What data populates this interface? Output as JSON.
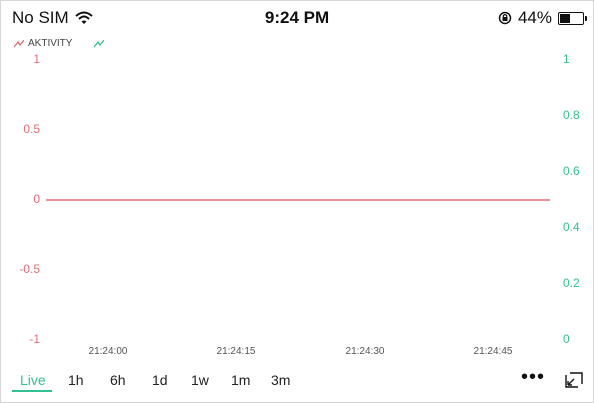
{
  "status": {
    "carrier": "No SIM",
    "time": "9:24 PM",
    "battery": "44%",
    "battery_level": 0.44
  },
  "legend": {
    "series1_name": "AKTIVITY"
  },
  "chart_data": {
    "type": "line",
    "x_ticks": [
      "21:24:00",
      "21:24:15",
      "21:24:30",
      "21:24:45"
    ],
    "y_left_ticks": [
      "1",
      "0.5",
      "0",
      "-0.5",
      "-1"
    ],
    "y_left_range": [
      -1,
      1
    ],
    "y_right_ticks": [
      "1",
      "0.8",
      "0.6",
      "0.4",
      "0.2",
      "0"
    ],
    "y_right_range": [
      0,
      1
    ],
    "grid": false,
    "colors": {
      "series1": "#e26d78",
      "series2": "#33c194"
    },
    "series": [
      {
        "name": "AKTIVITY",
        "axis": "left",
        "values": [
          0,
          0,
          0,
          0
        ]
      }
    ]
  },
  "ranges": [
    "Live",
    "1h",
    "6h",
    "1d",
    "1w",
    "1m",
    "3m"
  ],
  "active_range": "Live",
  "more_label": "•••",
  "icons": {
    "wifi": "wifi-icon",
    "lock": "orientation-lock-icon",
    "expand": "expand-icon",
    "legend": "line-series-icon"
  }
}
